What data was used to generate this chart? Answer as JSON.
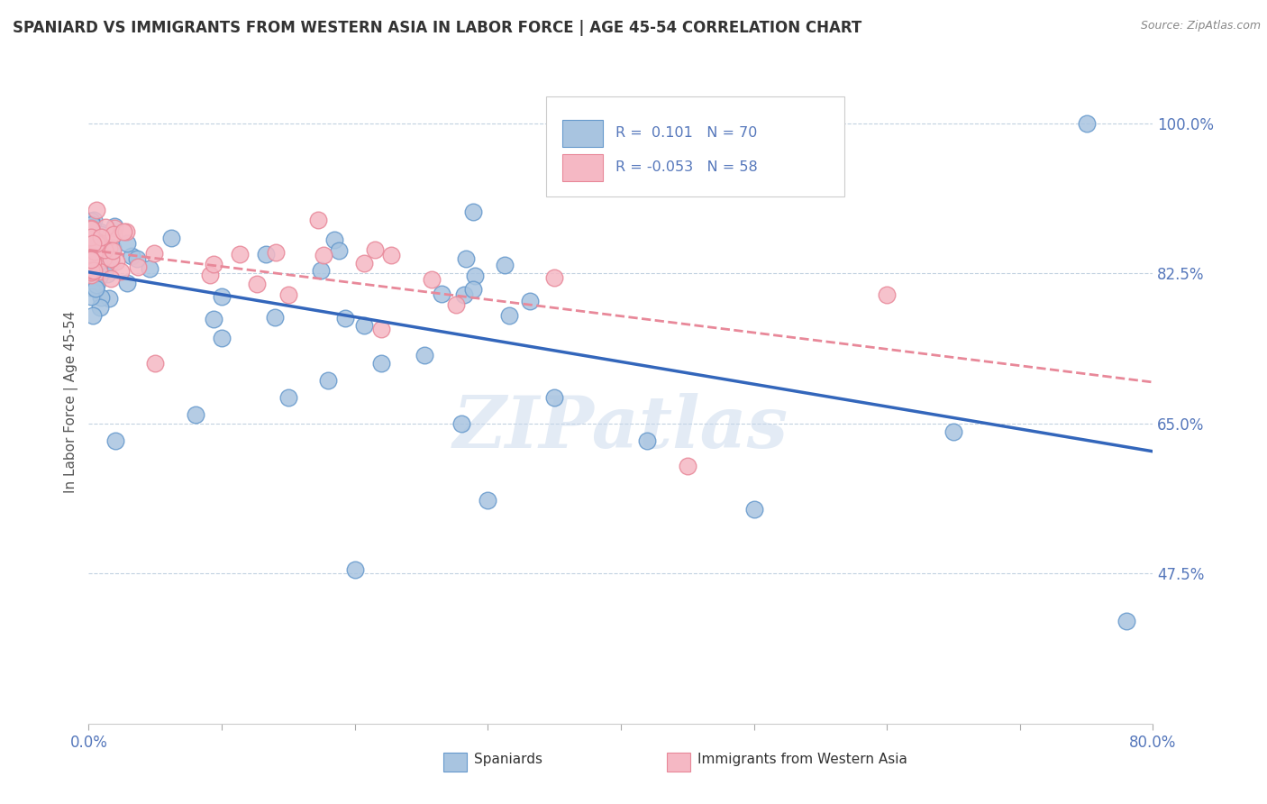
{
  "title": "SPANIARD VS IMMIGRANTS FROM WESTERN ASIA IN LABOR FORCE | AGE 45-54 CORRELATION CHART",
  "source": "Source: ZipAtlas.com",
  "ylabel": "In Labor Force | Age 45-54",
  "xlim": [
    0.0,
    0.8
  ],
  "ylim": [
    0.3,
    1.05
  ],
  "ytick_positions": [
    0.475,
    0.65,
    0.825,
    1.0
  ],
  "ytick_labels": [
    "47.5%",
    "65.0%",
    "82.5%",
    "100.0%"
  ],
  "blue_color": "#A8C4E0",
  "blue_edge": "#6699CC",
  "pink_color": "#F5B8C4",
  "pink_edge": "#E88899",
  "trend_blue": "#3366BB",
  "trend_pink": "#E88899",
  "R_blue": 0.101,
  "N_blue": 70,
  "R_pink": -0.053,
  "N_pink": 58,
  "legend_spaniards": "Spaniards",
  "legend_immigrants": "Immigrants from Western Asia",
  "watermark": "ZIPatlas",
  "title_color": "#333333",
  "source_color": "#888888",
  "tick_color": "#5577BB",
  "grid_color": "#BBCCDD",
  "ylabel_color": "#555555"
}
